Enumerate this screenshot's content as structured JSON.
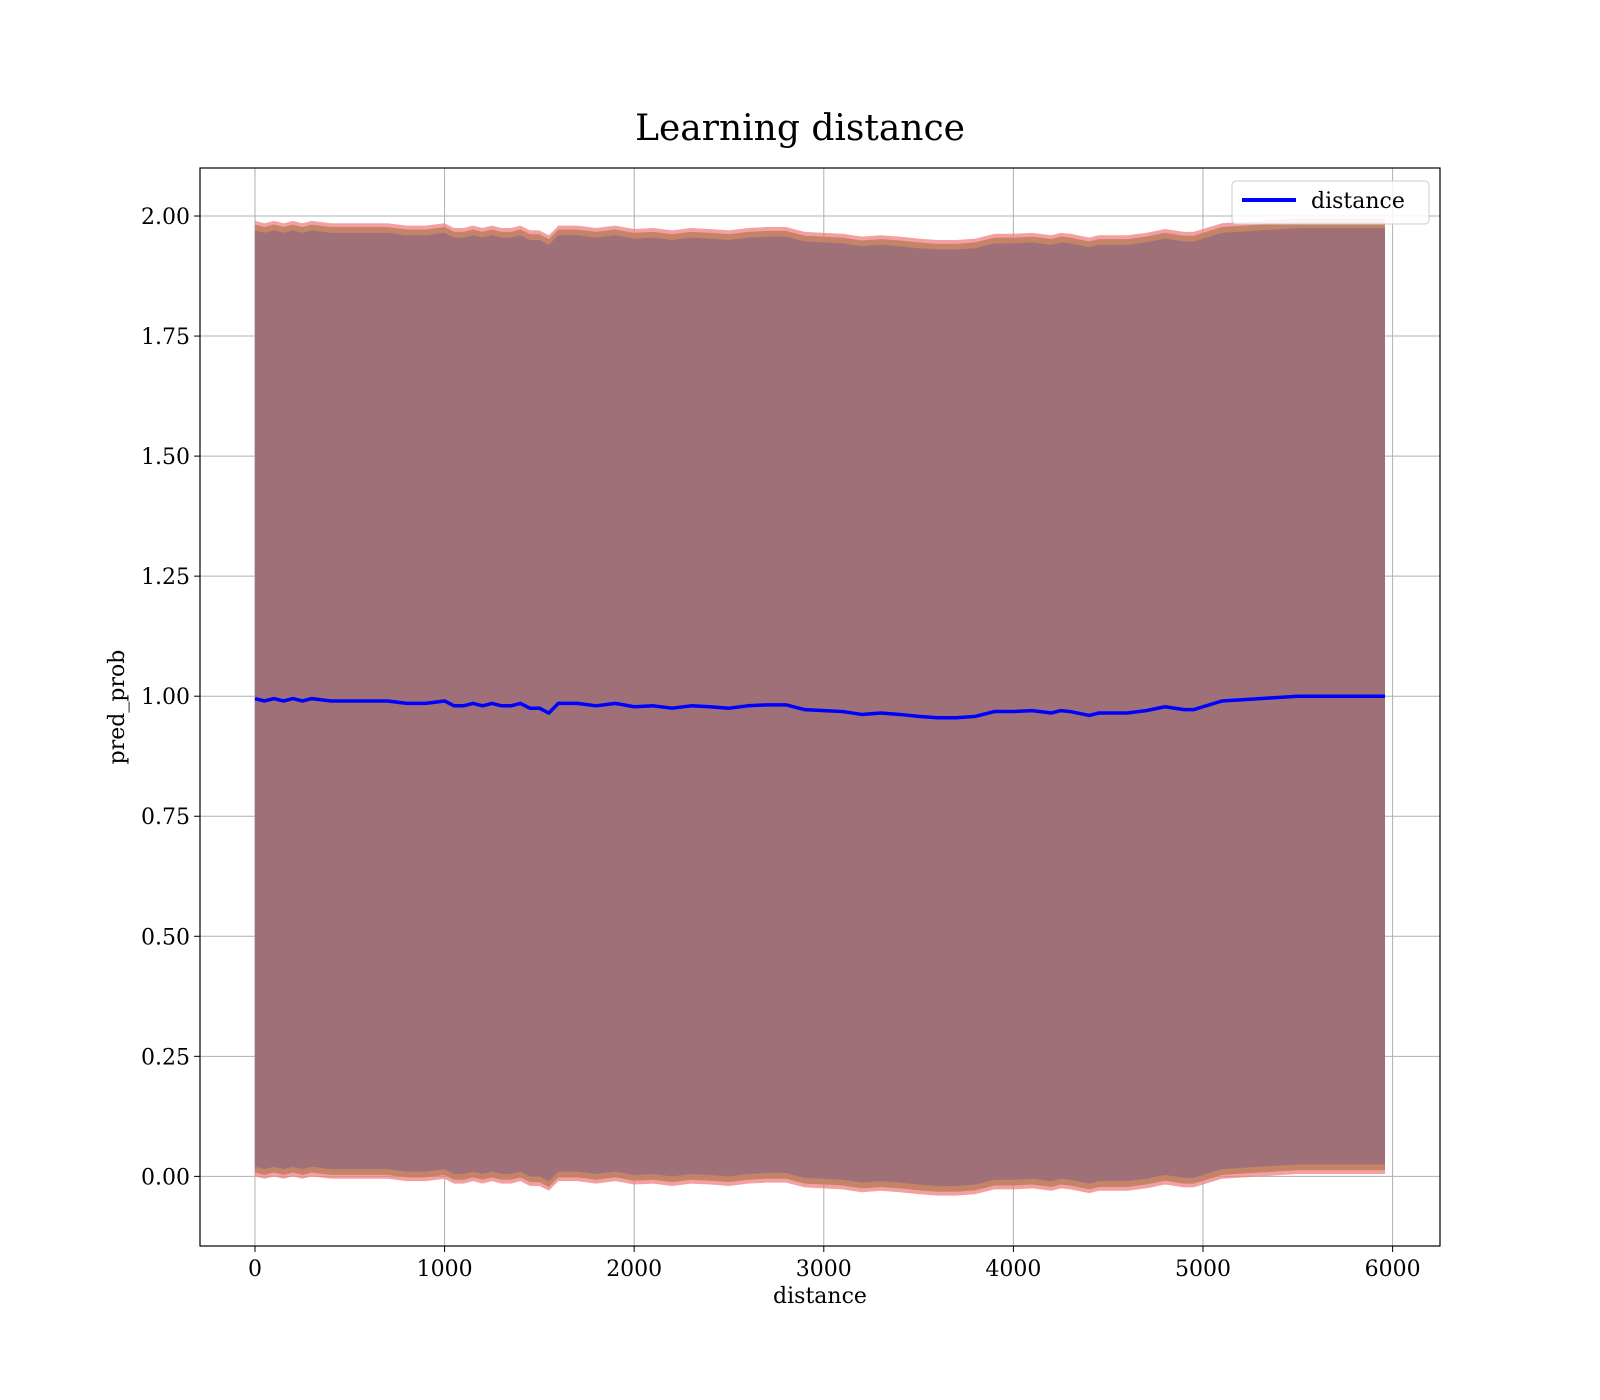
{
  "chart_data": {
    "type": "line",
    "title": "Learning distance",
    "xlabel": "distance",
    "ylabel": "pred_prob",
    "xlim": [
      -290,
      6250
    ],
    "ylim": [
      -0.145,
      2.1
    ],
    "xticks": [
      0,
      1000,
      2000,
      3000,
      4000,
      5000,
      6000
    ],
    "yticks": [
      0.0,
      0.25,
      0.5,
      0.75,
      1.0,
      1.25,
      1.5,
      1.75,
      2.0
    ],
    "xtick_labels": [
      "0",
      "1000",
      "2000",
      "3000",
      "4000",
      "5000",
      "6000"
    ],
    "ytick_labels": [
      "0.00",
      "0.25",
      "0.50",
      "0.75",
      "1.00",
      "1.25",
      "1.50",
      "1.75",
      "2.00"
    ],
    "grid": true,
    "legend": {
      "position": "top-right",
      "entries": [
        "distance"
      ]
    },
    "colors": {
      "line": "#0000ff",
      "band_outer": "#f08080",
      "band_middle": "#c08060",
      "band_inner": "#a07078",
      "grid": "#b0b0b0"
    },
    "series": [
      {
        "name": "distance",
        "x": [
          0,
          50,
          100,
          150,
          200,
          250,
          300,
          400,
          500,
          600,
          700,
          800,
          900,
          1000,
          1050,
          1100,
          1150,
          1200,
          1250,
          1300,
          1350,
          1400,
          1450,
          1500,
          1550,
          1600,
          1700,
          1800,
          1900,
          2000,
          2100,
          2200,
          2300,
          2400,
          2500,
          2600,
          2700,
          2800,
          2900,
          3000,
          3100,
          3200,
          3300,
          3400,
          3500,
          3600,
          3700,
          3800,
          3900,
          4000,
          4100,
          4200,
          4250,
          4300,
          4400,
          4450,
          4500,
          4600,
          4700,
          4800,
          4900,
          4950,
          5000,
          5100,
          5300,
          5500,
          5700,
          5960
        ],
        "y": [
          0.995,
          0.99,
          0.995,
          0.99,
          0.995,
          0.99,
          0.995,
          0.99,
          0.99,
          0.99,
          0.99,
          0.985,
          0.985,
          0.99,
          0.98,
          0.98,
          0.985,
          0.98,
          0.985,
          0.98,
          0.98,
          0.985,
          0.975,
          0.975,
          0.965,
          0.985,
          0.985,
          0.98,
          0.985,
          0.978,
          0.98,
          0.975,
          0.98,
          0.978,
          0.975,
          0.98,
          0.982,
          0.982,
          0.972,
          0.97,
          0.968,
          0.962,
          0.965,
          0.962,
          0.958,
          0.955,
          0.955,
          0.958,
          0.968,
          0.968,
          0.97,
          0.965,
          0.97,
          0.968,
          0.96,
          0.965,
          0.965,
          0.965,
          0.97,
          0.978,
          0.972,
          0.972,
          0.978,
          0.99,
          0.995,
          1.0,
          1.0,
          1.0
        ]
      }
    ],
    "band_upper_inner": [
      1.97,
      1.965,
      1.97,
      1.965,
      1.97,
      1.965,
      1.97,
      1.965,
      1.965,
      1.965,
      1.965,
      1.96,
      1.96,
      1.965,
      1.955,
      1.955,
      1.96,
      1.955,
      1.96,
      1.955,
      1.955,
      1.96,
      1.95,
      1.95,
      1.94,
      1.96,
      1.96,
      1.955,
      1.96,
      1.953,
      1.955,
      1.95,
      1.955,
      1.953,
      1.95,
      1.955,
      1.957,
      1.957,
      1.947,
      1.945,
      1.943,
      1.937,
      1.94,
      1.937,
      1.933,
      1.93,
      1.93,
      1.933,
      1.943,
      1.943,
      1.945,
      1.94,
      1.945,
      1.943,
      1.935,
      1.94,
      1.94,
      1.94,
      1.945,
      1.953,
      1.947,
      1.947,
      1.953,
      1.965,
      1.97,
      1.975,
      1.975,
      1.975
    ],
    "band_upper_outer": [
      1.99,
      1.985,
      1.99,
      1.985,
      1.99,
      1.985,
      1.99,
      1.985,
      1.985,
      1.985,
      1.985,
      1.98,
      1.98,
      1.985,
      1.975,
      1.975,
      1.98,
      1.975,
      1.98,
      1.975,
      1.975,
      1.98,
      1.97,
      1.97,
      1.96,
      1.98,
      1.98,
      1.975,
      1.98,
      1.973,
      1.975,
      1.97,
      1.975,
      1.973,
      1.97,
      1.975,
      1.977,
      1.977,
      1.967,
      1.965,
      1.963,
      1.957,
      1.96,
      1.957,
      1.953,
      1.95,
      1.95,
      1.953,
      1.963,
      1.963,
      1.965,
      1.96,
      1.965,
      1.963,
      1.955,
      1.96,
      1.96,
      1.96,
      1.965,
      1.973,
      1.967,
      1.967,
      1.973,
      1.985,
      1.99,
      1.995,
      1.995,
      1.995
    ],
    "band_lower_inner": [
      0.02,
      0.015,
      0.02,
      0.015,
      0.02,
      0.015,
      0.02,
      0.015,
      0.015,
      0.015,
      0.015,
      0.01,
      0.01,
      0.015,
      0.005,
      0.005,
      0.01,
      0.005,
      0.01,
      0.005,
      0.005,
      0.01,
      0.0,
      0.0,
      -0.01,
      0.01,
      0.01,
      0.005,
      0.01,
      0.003,
      0.005,
      0.0,
      0.005,
      0.003,
      0.0,
      0.005,
      0.007,
      0.007,
      -0.003,
      -0.005,
      -0.007,
      -0.013,
      -0.01,
      -0.013,
      -0.017,
      -0.02,
      -0.02,
      -0.017,
      -0.007,
      -0.007,
      -0.005,
      -0.01,
      -0.005,
      -0.007,
      -0.015,
      -0.01,
      -0.01,
      -0.01,
      -0.005,
      0.003,
      -0.003,
      -0.003,
      0.003,
      0.015,
      0.02,
      0.025,
      0.025,
      0.025
    ],
    "band_lower_outer": [
      0.0,
      -0.005,
      0.0,
      -0.005,
      0.0,
      -0.005,
      0.0,
      -0.005,
      -0.005,
      -0.005,
      -0.005,
      -0.01,
      -0.01,
      -0.005,
      -0.015,
      -0.015,
      -0.01,
      -0.015,
      -0.01,
      -0.015,
      -0.015,
      -0.01,
      -0.02,
      -0.02,
      -0.03,
      -0.01,
      -0.01,
      -0.015,
      -0.01,
      -0.017,
      -0.015,
      -0.02,
      -0.015,
      -0.017,
      -0.02,
      -0.015,
      -0.013,
      -0.013,
      -0.023,
      -0.025,
      -0.027,
      -0.033,
      -0.03,
      -0.033,
      -0.037,
      -0.04,
      -0.04,
      -0.037,
      -0.027,
      -0.027,
      -0.025,
      -0.03,
      -0.025,
      -0.027,
      -0.035,
      -0.03,
      -0.03,
      -0.03,
      -0.025,
      -0.017,
      -0.023,
      -0.023,
      -0.017,
      -0.005,
      0.0,
      0.005,
      0.005,
      0.005
    ]
  }
}
